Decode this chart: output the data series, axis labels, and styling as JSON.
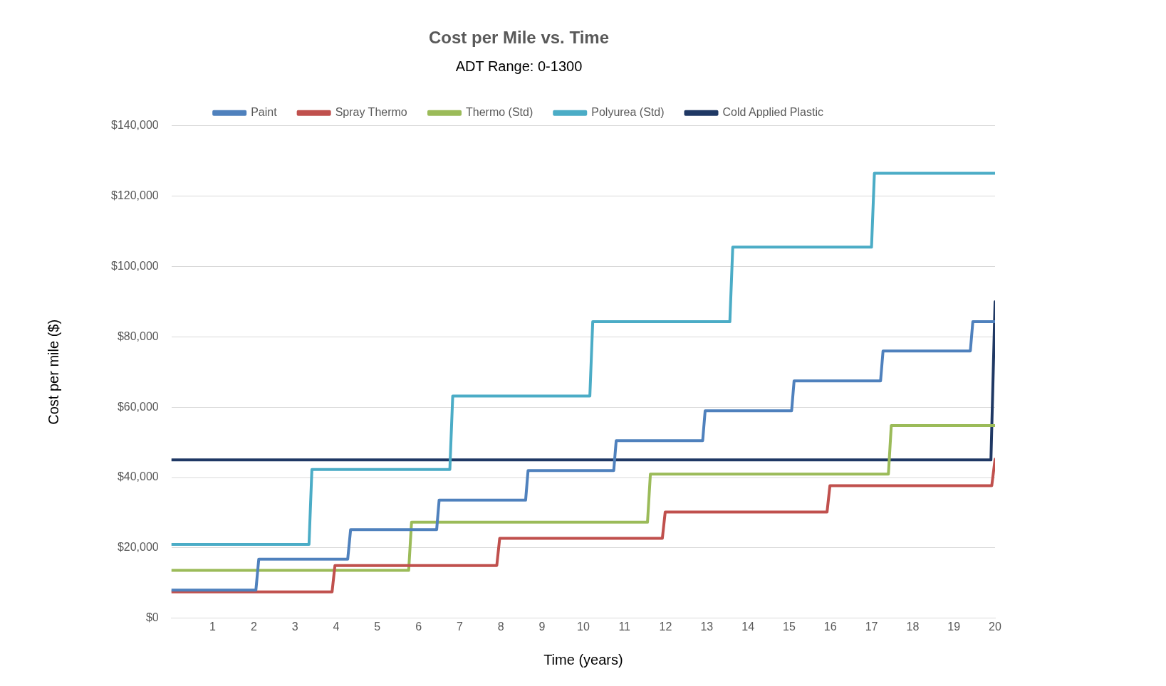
{
  "chart_data": {
    "type": "line",
    "title": "Cost per Mile vs. Time",
    "subtitle": "ADT Range: 0-1300",
    "xlabel": "Time (years)",
    "ylabel": "Cost per mile ($)",
    "xlim": [
      0,
      20
    ],
    "xticks": [
      1,
      2,
      3,
      4,
      5,
      6,
      7,
      8,
      9,
      10,
      11,
      12,
      13,
      14,
      15,
      16,
      17,
      18,
      19,
      20
    ],
    "ylim": [
      0,
      140000
    ],
    "yticks": [
      {
        "value": 0,
        "label": "$0"
      },
      {
        "value": 20000,
        "label": "$20,000"
      },
      {
        "value": 40000,
        "label": "$40,000"
      },
      {
        "value": 60000,
        "label": "$60,000"
      },
      {
        "value": 80000,
        "label": "$80,000"
      },
      {
        "value": 100000,
        "label": "$100,000"
      },
      {
        "value": 120000,
        "label": "$120,000"
      },
      {
        "value": 140000,
        "label": "$140,000"
      }
    ],
    "grid": "y",
    "legend": "top",
    "marker": "none",
    "line_style": "solid",
    "series": [
      {
        "name": "Paint",
        "color": "#4f81bd",
        "x": [
          0,
          2.05,
          2.12,
          4.28,
          4.35,
          6.44,
          6.5,
          8.6,
          8.66,
          10.74,
          10.8,
          12.9,
          12.96,
          15.06,
          15.12,
          17.22,
          17.28,
          19.4,
          19.46,
          20
        ],
        "values": [
          8000,
          8000,
          16800,
          16800,
          25200,
          25200,
          33600,
          33600,
          42000,
          42000,
          50500,
          50500,
          59000,
          59000,
          67500,
          67500,
          76000,
          76000,
          84300,
          84300
        ]
      },
      {
        "name": "Spray Thermo",
        "color": "#c0504d",
        "x": [
          0,
          3.9,
          3.97,
          7.9,
          7.97,
          11.92,
          11.99,
          15.92,
          15.99,
          19.92,
          20
        ],
        "values": [
          7500,
          7500,
          15000,
          15000,
          22700,
          22700,
          30200,
          30200,
          37700,
          37700,
          45200
        ]
      },
      {
        "name": "Thermo (Std)",
        "color": "#9bbb59",
        "x": [
          0,
          5.76,
          5.83,
          11.56,
          11.63,
          17.41,
          17.48,
          20
        ],
        "values": [
          13600,
          13600,
          27300,
          27300,
          41000,
          41000,
          54800,
          54800
        ]
      },
      {
        "name": "Polyurea (Std)",
        "color": "#4bacc6",
        "x": [
          0,
          3.34,
          3.41,
          6.76,
          6.83,
          10.16,
          10.23,
          13.56,
          13.63,
          17.0,
          17.07,
          20
        ],
        "values": [
          21000,
          21000,
          42300,
          42300,
          63200,
          63200,
          84300,
          84300,
          105500,
          105500,
          126500,
          126500
        ]
      },
      {
        "name": "Cold Applied Plastic",
        "color": "#1f3864",
        "x": [
          0,
          19.9,
          20
        ],
        "values": [
          45000,
          45000,
          90000
        ]
      }
    ]
  }
}
